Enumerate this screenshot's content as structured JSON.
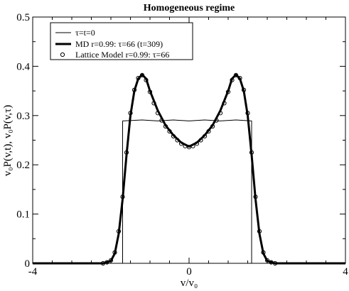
{
  "chart_data": {
    "type": "line",
    "title": "Homogeneous regime",
    "xlabel": "v/v₀",
    "ylabel": "v₀P(v,t), v₀P(v,τ)",
    "xlim": [
      -4,
      4
    ],
    "ylim": [
      0,
      0.5
    ],
    "x_ticks": [
      "-4",
      "0",
      "4"
    ],
    "y_ticks": [
      "0",
      "0.1",
      "0.2",
      "0.3",
      "0.4",
      "0.5"
    ],
    "grid": false,
    "legend_position": "top-left",
    "series": [
      {
        "name": "τ=t=0",
        "style": "thin-line",
        "color": "#000000",
        "x": [
          -4.0,
          -1.7,
          -1.7,
          -1.2,
          -0.8,
          -0.4,
          0.0,
          0.4,
          0.8,
          1.2,
          1.6,
          1.6,
          4.0
        ],
        "y": [
          0.0,
          0.0,
          0.289,
          0.291,
          0.289,
          0.291,
          0.289,
          0.291,
          0.289,
          0.291,
          0.289,
          0.0,
          0.0
        ]
      },
      {
        "name": "MD r=0.99:  τ=66 (t=309)",
        "style": "thick-line",
        "color": "#000000",
        "x": [
          -4.0,
          -2.2,
          -2.0,
          -1.9,
          -1.8,
          -1.7,
          -1.6,
          -1.5,
          -1.4,
          -1.3,
          -1.2,
          -1.1,
          -1.0,
          -0.8,
          -0.6,
          -0.4,
          -0.2,
          0.0,
          0.2,
          0.4,
          0.6,
          0.8,
          1.0,
          1.1,
          1.2,
          1.3,
          1.4,
          1.5,
          1.6,
          1.7,
          1.8,
          1.9,
          2.0,
          2.2,
          4.0
        ],
        "y": [
          0.0,
          0.0,
          0.005,
          0.02,
          0.06,
          0.13,
          0.22,
          0.3,
          0.35,
          0.375,
          0.383,
          0.375,
          0.35,
          0.31,
          0.28,
          0.26,
          0.245,
          0.237,
          0.245,
          0.26,
          0.28,
          0.31,
          0.35,
          0.375,
          0.383,
          0.375,
          0.35,
          0.3,
          0.22,
          0.13,
          0.06,
          0.02,
          0.005,
          0.0,
          0.0
        ]
      },
      {
        "name": "Lattice Model r=0.99: τ=66",
        "style": "circle-markers",
        "color": "#000000",
        "x": [
          -2.2,
          -2.1,
          -2.0,
          -1.9,
          -1.8,
          -1.7,
          -1.6,
          -1.5,
          -1.4,
          -1.3,
          -1.2,
          -1.1,
          -1.0,
          -0.9,
          -0.8,
          -0.7,
          -0.6,
          -0.5,
          -0.4,
          -0.3,
          -0.2,
          -0.1,
          0.0,
          0.1,
          0.2,
          0.3,
          0.4,
          0.5,
          0.6,
          0.7,
          0.8,
          0.9,
          1.0,
          1.1,
          1.2,
          1.3,
          1.4,
          1.5,
          1.6,
          1.7,
          1.8,
          1.9,
          2.0,
          2.1,
          2.2
        ],
        "y": [
          0.0,
          0.002,
          0.006,
          0.022,
          0.065,
          0.135,
          0.225,
          0.305,
          0.352,
          0.376,
          0.382,
          0.372,
          0.348,
          0.325,
          0.305,
          0.29,
          0.278,
          0.268,
          0.258,
          0.25,
          0.243,
          0.238,
          0.236,
          0.238,
          0.243,
          0.25,
          0.258,
          0.268,
          0.278,
          0.29,
          0.305,
          0.325,
          0.348,
          0.372,
          0.382,
          0.376,
          0.352,
          0.305,
          0.225,
          0.135,
          0.065,
          0.022,
          0.006,
          0.002,
          0.0
        ]
      }
    ]
  }
}
